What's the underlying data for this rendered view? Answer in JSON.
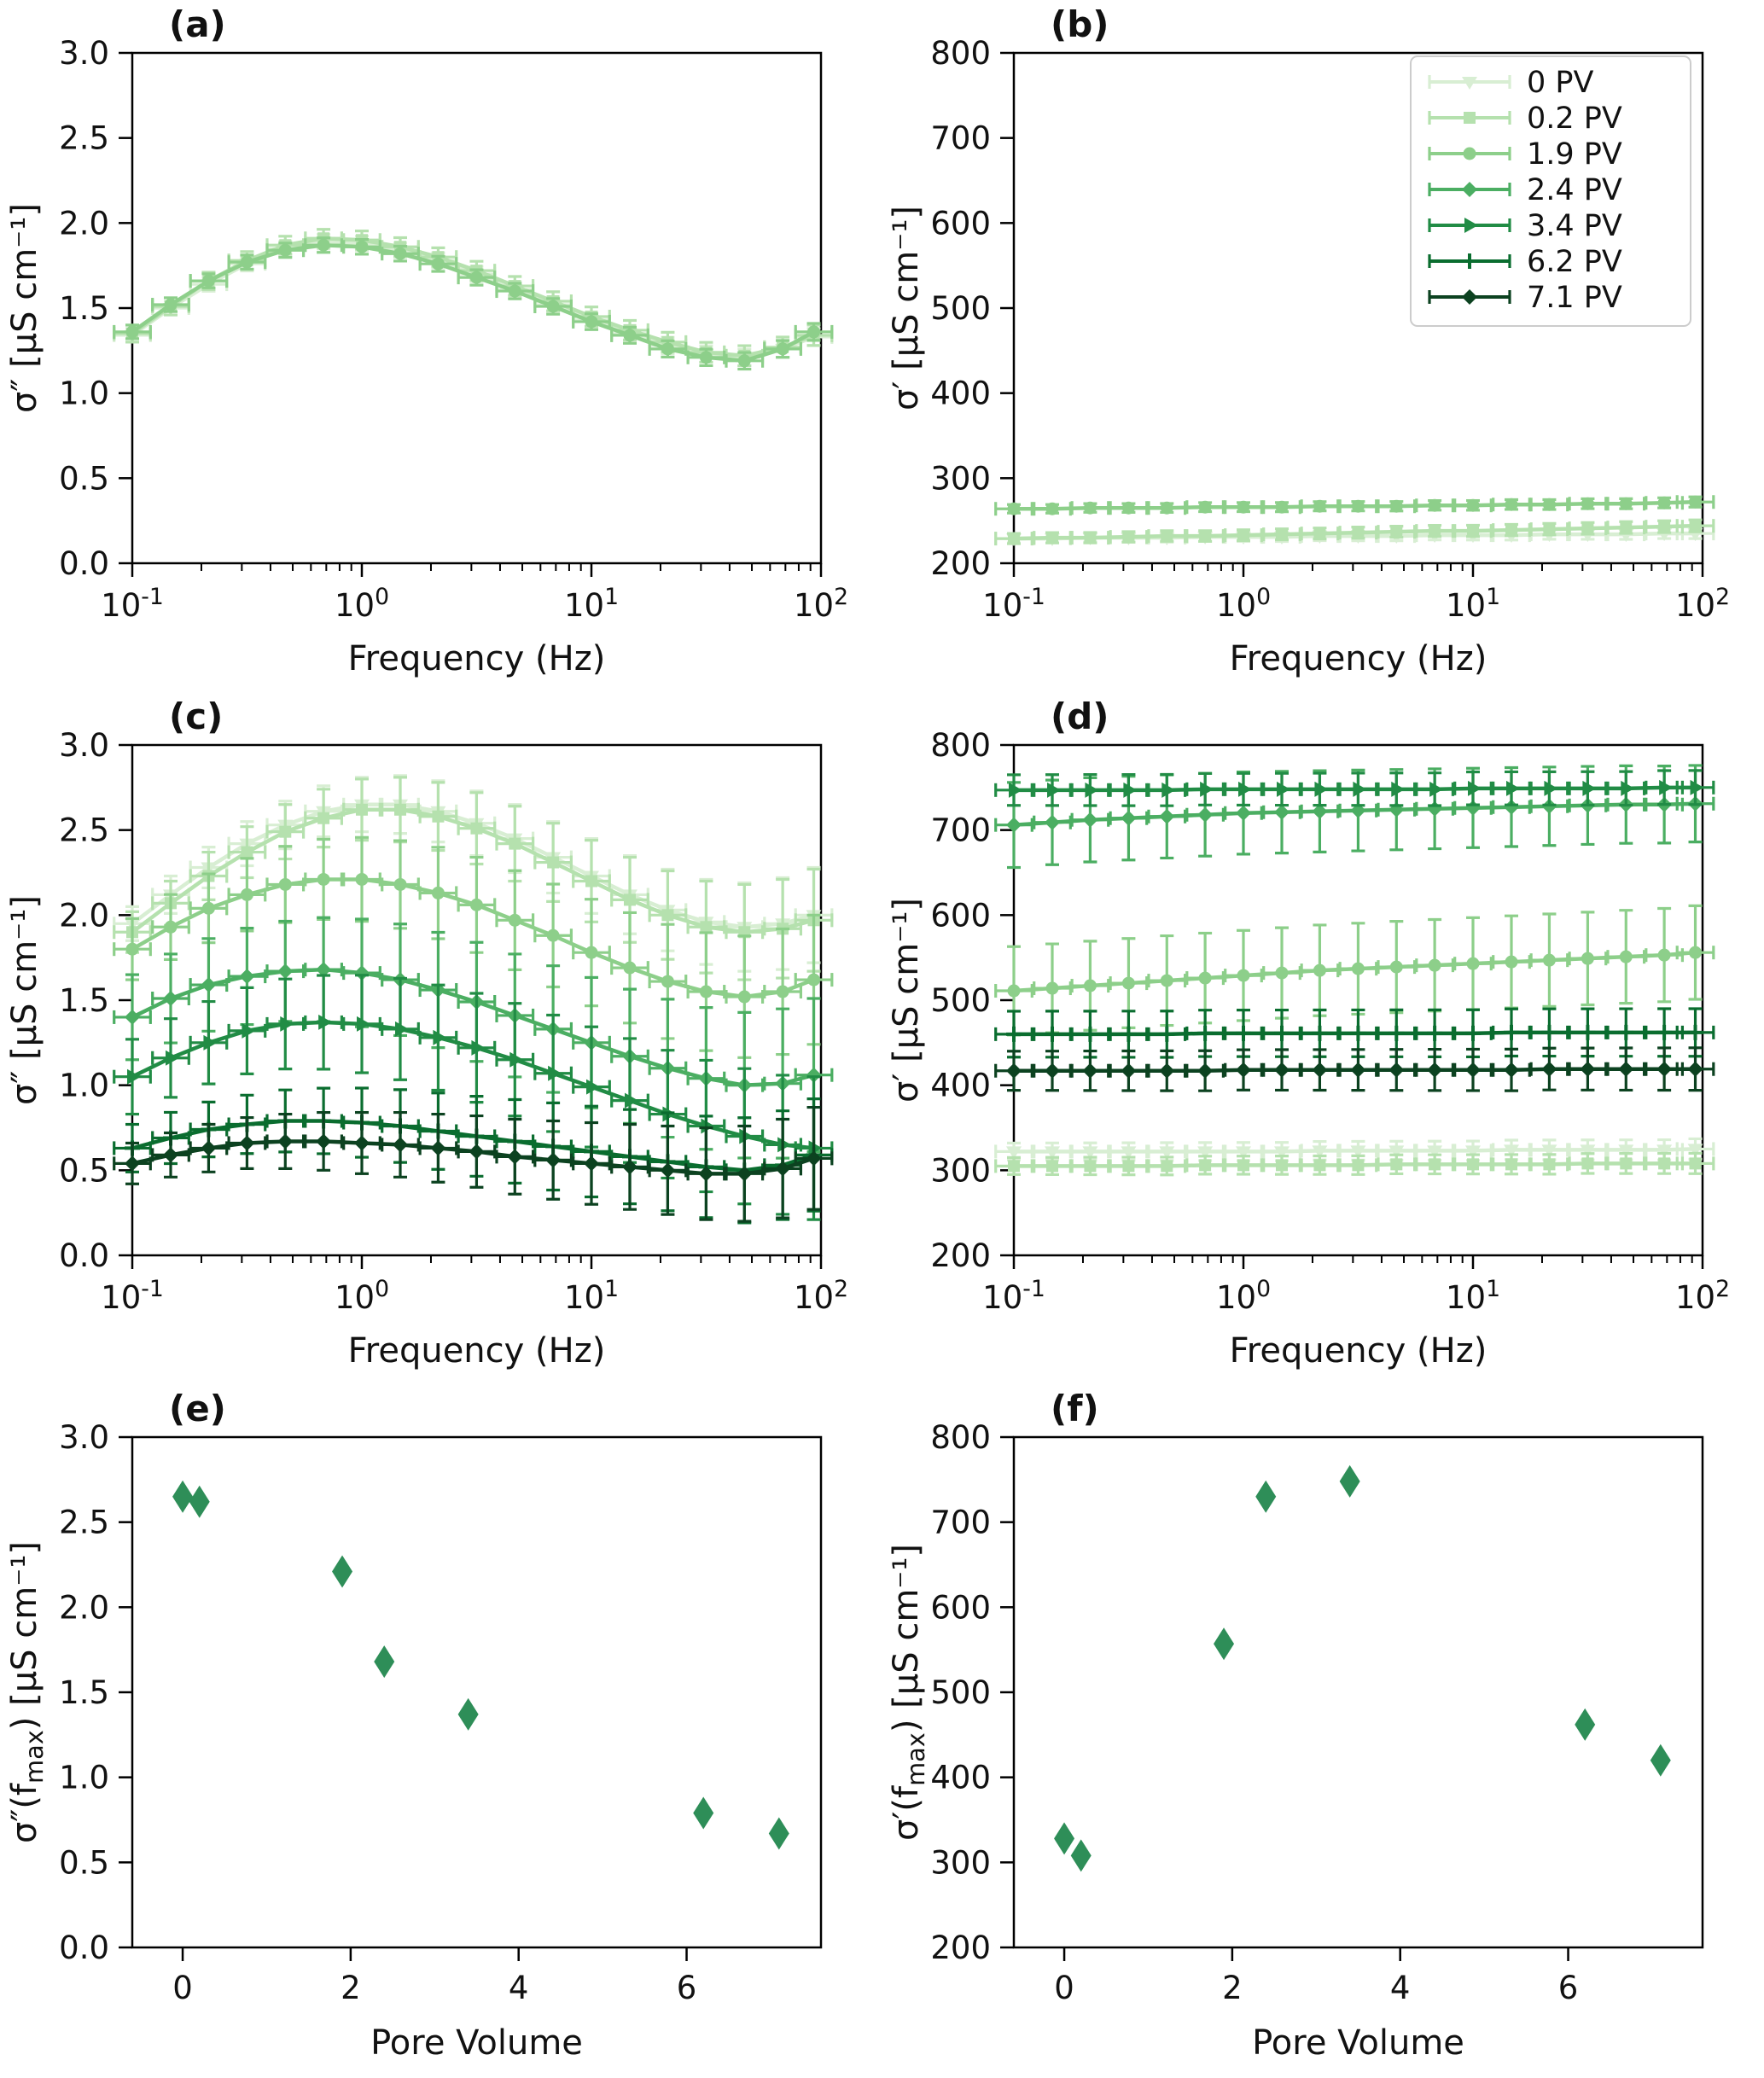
{
  "legend_labels": [
    "0 PV",
    "0.2 PV",
    "1.9 PV",
    "2.4 PV",
    "3.4 PV",
    "6.2 PV",
    "7.1 PV"
  ],
  "colors": {
    "pv0": "#d8eed3",
    "pv02": "#b5e1ae",
    "pv19": "#8dcf8a",
    "pv24": "#4bae62",
    "pv34": "#218c45",
    "pv62": "#0a6d2f",
    "pv71": "#0c4220",
    "scatter": "#2e8e58"
  },
  "chart_data": [
    {
      "panel_label": "(a)",
      "type": "line",
      "xscale": "log",
      "xlabel": "Frequency (Hz)",
      "ylabel": "σ″ [μS cm⁻¹]",
      "xlim_log": [
        -1,
        2
      ],
      "ylim": [
        0,
        3
      ],
      "yticks": [
        0.0,
        0.5,
        1.0,
        1.5,
        2.0,
        2.5,
        3.0
      ],
      "ytick_labels": [
        "0.0",
        "0.5",
        "1.0",
        "1.5",
        "2.0",
        "2.5",
        "3.0"
      ],
      "xticks_log": [
        -1,
        0,
        1,
        2
      ],
      "xtick_labels": [
        "10^{-1}",
        "10^{0}",
        "10^{1}",
        "10^{2}"
      ],
      "xerr_ratio": 1.2,
      "x": [
        0.1,
        0.147,
        0.215,
        0.316,
        0.464,
        0.681,
        1.0,
        1.47,
        2.15,
        3.16,
        4.64,
        6.81,
        10.0,
        14.7,
        21.5,
        31.6,
        46.4,
        68.1,
        93.0
      ],
      "series": [
        {
          "name": "0 PV",
          "color": "#d8eed3",
          "marker": "tri_down",
          "values": [
            1.34,
            1.5,
            1.64,
            1.76,
            1.85,
            1.89,
            1.88,
            1.84,
            1.78,
            1.7,
            1.61,
            1.52,
            1.43,
            1.35,
            1.28,
            1.23,
            1.21,
            1.26,
            1.33
          ],
          "yerr": [
            0.04,
            0.05
          ]
        },
        {
          "name": "0.2 PV",
          "color": "#b5e1ae",
          "marker": "square",
          "values": [
            1.35,
            1.51,
            1.66,
            1.78,
            1.87,
            1.91,
            1.9,
            1.86,
            1.8,
            1.72,
            1.63,
            1.54,
            1.45,
            1.37,
            1.3,
            1.24,
            1.22,
            1.27,
            1.34
          ],
          "yerr": [
            0.05,
            0.06
          ]
        },
        {
          "name": "1.9 PV",
          "color": "#8dcf8a",
          "marker": "circle",
          "values": [
            1.36,
            1.52,
            1.66,
            1.77,
            1.84,
            1.87,
            1.86,
            1.82,
            1.76,
            1.68,
            1.6,
            1.51,
            1.42,
            1.34,
            1.26,
            1.21,
            1.19,
            1.26,
            1.36
          ],
          "yerr": [
            0.04,
            0.05
          ]
        }
      ]
    },
    {
      "panel_label": "(b)",
      "type": "line",
      "xscale": "log",
      "xlabel": "Frequency (Hz)",
      "ylabel": "σ′ [μS cm⁻¹]",
      "xlim_log": [
        -1,
        2
      ],
      "ylim": [
        200,
        800
      ],
      "yticks": [
        200,
        300,
        400,
        500,
        600,
        700,
        800
      ],
      "ytick_labels": [
        "200",
        "300",
        "400",
        "500",
        "600",
        "700",
        "800"
      ],
      "xticks_log": [
        -1,
        0,
        1,
        2
      ],
      "xtick_labels": [
        "10^{-1}",
        "10^{0}",
        "10^{1}",
        "10^{2}"
      ],
      "xerr_ratio": 1.2,
      "x": [
        0.1,
        0.147,
        0.215,
        0.316,
        0.464,
        0.681,
        1.0,
        1.47,
        2.15,
        3.16,
        4.64,
        6.81,
        10.0,
        14.7,
        21.5,
        31.6,
        46.4,
        68.1,
        93.0
      ],
      "series": [
        {
          "name": "0 PV",
          "color": "#d8eed3",
          "marker": "tri_down",
          "values": [
            229,
            229,
            230,
            230,
            230,
            231,
            231,
            231,
            232,
            232,
            232,
            233,
            233,
            233,
            234,
            234,
            234,
            235,
            235
          ],
          "yerr": [
            5,
            6
          ]
        },
        {
          "name": "0.2 PV",
          "color": "#b5e1ae",
          "marker": "square",
          "values": [
            229,
            230,
            230,
            231,
            232,
            232,
            233,
            234,
            235,
            236,
            237,
            238,
            238,
            239,
            240,
            241,
            242,
            243,
            244
          ],
          "yerr": [
            6,
            7
          ]
        },
        {
          "name": "1.9 PV",
          "color": "#8dcf8a",
          "marker": "circle",
          "values": [
            264,
            264,
            265,
            265,
            265,
            266,
            266,
            266,
            267,
            267,
            267,
            268,
            268,
            269,
            269,
            270,
            270,
            271,
            272
          ],
          "yerr": [
            5,
            6
          ]
        }
      ],
      "legend": {
        "position": "upper right",
        "entries": [
          {
            "label": "0 PV",
            "color": "#d8eed3",
            "marker": "tri_down"
          },
          {
            "label": "0.2 PV",
            "color": "#b5e1ae",
            "marker": "square"
          },
          {
            "label": "1.9 PV",
            "color": "#8dcf8a",
            "marker": "circle"
          },
          {
            "label": "2.4 PV",
            "color": "#4bae62",
            "marker": "diamond"
          },
          {
            "label": "3.4 PV",
            "color": "#218c45",
            "marker": "tri_right"
          },
          {
            "label": "6.2 PV",
            "color": "#0a6d2f",
            "marker": "plus"
          },
          {
            "label": "7.1 PV",
            "color": "#0c4220",
            "marker": "diamond"
          }
        ]
      }
    },
    {
      "panel_label": "(c)",
      "type": "line",
      "xscale": "log",
      "xlabel": "Frequency (Hz)",
      "ylabel": "σ″ [μS cm⁻¹]",
      "xlim_log": [
        -1,
        2
      ],
      "ylim": [
        0,
        3
      ],
      "yticks": [
        0.0,
        0.5,
        1.0,
        1.5,
        2.0,
        2.5,
        3.0
      ],
      "ytick_labels": [
        "0.0",
        "0.5",
        "1.0",
        "1.5",
        "2.0",
        "2.5",
        "3.0"
      ],
      "xticks_log": [
        -1,
        0,
        1,
        2
      ],
      "xtick_labels": [
        "10^{-1}",
        "10^{0}",
        "10^{1}",
        "10^{2}"
      ],
      "xerr_ratio": 1.2,
      "x": [
        0.1,
        0.147,
        0.215,
        0.316,
        0.464,
        0.681,
        1.0,
        1.47,
        2.15,
        3.16,
        4.64,
        6.81,
        10.0,
        14.7,
        21.5,
        31.6,
        46.4,
        68.1,
        93.0
      ],
      "series": [
        {
          "name": "0 PV",
          "color": "#d8eed3",
          "marker": "tri_down",
          "values": [
            1.95,
            2.12,
            2.28,
            2.42,
            2.53,
            2.61,
            2.65,
            2.65,
            2.61,
            2.54,
            2.45,
            2.34,
            2.23,
            2.12,
            2.03,
            1.96,
            1.93,
            1.95,
            2.0
          ],
          "yerr": [
            0.1,
            0.28
          ]
        },
        {
          "name": "0.2 PV",
          "color": "#b5e1ae",
          "marker": "square",
          "values": [
            1.9,
            2.07,
            2.23,
            2.37,
            2.49,
            2.57,
            2.62,
            2.62,
            2.58,
            2.51,
            2.42,
            2.31,
            2.2,
            2.09,
            2.0,
            1.93,
            1.9,
            1.92,
            1.97
          ],
          "yerr": [
            0.12,
            0.3
          ]
        },
        {
          "name": "1.9 PV",
          "color": "#8dcf8a",
          "marker": "circle",
          "values": [
            1.8,
            1.93,
            2.04,
            2.12,
            2.18,
            2.21,
            2.21,
            2.18,
            2.13,
            2.06,
            1.97,
            1.88,
            1.78,
            1.69,
            1.61,
            1.55,
            1.52,
            1.55,
            1.62
          ],
          "yerr": [
            0.18,
            0.38
          ]
        },
        {
          "name": "2.4 PV",
          "color": "#4bae62",
          "marker": "diamond",
          "values": [
            1.4,
            1.51,
            1.59,
            1.64,
            1.67,
            1.68,
            1.66,
            1.62,
            1.56,
            1.49,
            1.41,
            1.33,
            1.25,
            1.17,
            1.1,
            1.04,
            1.0,
            1.01,
            1.06
          ],
          "yerr": [
            0.25,
            0.45
          ]
        },
        {
          "name": "3.4 PV",
          "color": "#218c45",
          "marker": "tri_right",
          "values": [
            1.05,
            1.16,
            1.25,
            1.32,
            1.36,
            1.37,
            1.36,
            1.33,
            1.28,
            1.22,
            1.15,
            1.07,
            0.99,
            0.91,
            0.83,
            0.76,
            0.7,
            0.65,
            0.63
          ],
          "yerr": [
            0.22,
            0.42
          ]
        },
        {
          "name": "6.2 PV",
          "color": "#0a6d2f",
          "marker": "plus",
          "values": [
            0.63,
            0.69,
            0.74,
            0.77,
            0.79,
            0.79,
            0.78,
            0.76,
            0.73,
            0.7,
            0.67,
            0.64,
            0.61,
            0.58,
            0.55,
            0.52,
            0.5,
            0.53,
            0.59
          ],
          "yerr": [
            0.14,
            0.33
          ]
        },
        {
          "name": "7.1 PV",
          "color": "#0c4220",
          "marker": "diamond",
          "values": [
            0.54,
            0.59,
            0.63,
            0.66,
            0.67,
            0.67,
            0.66,
            0.65,
            0.63,
            0.61,
            0.58,
            0.56,
            0.54,
            0.52,
            0.5,
            0.48,
            0.48,
            0.51,
            0.57
          ],
          "yerr": [
            0.12,
            0.3
          ]
        }
      ]
    },
    {
      "panel_label": "(d)",
      "type": "line",
      "xscale": "log",
      "xlabel": "Frequency (Hz)",
      "ylabel": "σ′ [μS cm⁻¹]",
      "xlim_log": [
        -1,
        2
      ],
      "ylim": [
        200,
        800
      ],
      "yticks": [
        200,
        300,
        400,
        500,
        600,
        700,
        800
      ],
      "ytick_labels": [
        "200",
        "300",
        "400",
        "500",
        "600",
        "700",
        "800"
      ],
      "xticks_log": [
        -1,
        0,
        1,
        2
      ],
      "xtick_labels": [
        "10^{-1}",
        "10^{0}",
        "10^{1}",
        "10^{2}"
      ],
      "xerr_ratio": 1.2,
      "x": [
        0.1,
        0.147,
        0.215,
        0.316,
        0.464,
        0.681,
        1.0,
        1.47,
        2.15,
        3.16,
        4.64,
        6.81,
        10.0,
        14.7,
        21.5,
        31.6,
        46.4,
        68.1,
        93.0
      ],
      "series": [
        {
          "name": "0 PV",
          "color": "#d8eed3",
          "marker": "tri_down",
          "values": [
            322,
            322,
            322,
            322,
            322,
            322,
            322,
            322,
            323,
            323,
            323,
            323,
            323,
            324,
            324,
            324,
            324,
            324,
            325
          ],
          "yerr": [
            10,
            12
          ]
        },
        {
          "name": "0.2 PV",
          "color": "#b5e1ae",
          "marker": "square",
          "values": [
            305,
            305,
            305,
            305,
            305,
            306,
            306,
            306,
            306,
            306,
            307,
            307,
            307,
            307,
            307,
            308,
            308,
            308,
            308
          ],
          "yerr": [
            10,
            12
          ]
        },
        {
          "name": "1.9 PV",
          "color": "#8dcf8a",
          "marker": "circle",
          "values": [
            511,
            514,
            517,
            520,
            523,
            526,
            529,
            532,
            535,
            537,
            539,
            541,
            543,
            545,
            547,
            549,
            551,
            553,
            556
          ],
          "yerr": [
            52,
            55
          ]
        },
        {
          "name": "2.4 PV",
          "color": "#4bae62",
          "marker": "diamond",
          "values": [
            706,
            709,
            712,
            714,
            716,
            718,
            720,
            721,
            722,
            723,
            724,
            725,
            726,
            727,
            728,
            729,
            730,
            730,
            731
          ],
          "yerr": [
            50,
            45
          ]
        },
        {
          "name": "3.4 PV",
          "color": "#218c45",
          "marker": "tri_right",
          "values": [
            747,
            747,
            747,
            747,
            747,
            748,
            748,
            748,
            748,
            748,
            748,
            748,
            749,
            749,
            749,
            749,
            749,
            750,
            750
          ],
          "yerr": [
            18,
            20
          ]
        },
        {
          "name": "6.2 PV",
          "color": "#0a6d2f",
          "marker": "plus",
          "values": [
            460,
            460,
            460,
            460,
            460,
            461,
            461,
            461,
            461,
            461,
            461,
            461,
            461,
            462,
            462,
            462,
            462,
            462,
            462
          ],
          "yerr": [
            27,
            28
          ]
        },
        {
          "name": "7.1 PV",
          "color": "#0c4220",
          "marker": "diamond",
          "values": [
            417,
            417,
            417,
            417,
            417,
            417,
            418,
            418,
            418,
            418,
            418,
            418,
            418,
            418,
            419,
            419,
            419,
            419,
            419
          ],
          "yerr": [
            23,
            25
          ]
        }
      ]
    },
    {
      "panel_label": "(e)",
      "type": "scatter",
      "xscale": "linear",
      "xlabel": "Pore Volume",
      "ylabel": "σ″(f_{max}) [μS cm⁻¹]",
      "xlim": [
        -0.6,
        7.6
      ],
      "ylim": [
        0,
        3
      ],
      "yticks": [
        0.0,
        0.5,
        1.0,
        1.5,
        2.0,
        2.5,
        3.0
      ],
      "ytick_labels": [
        "0.0",
        "0.5",
        "1.0",
        "1.5",
        "2.0",
        "2.5",
        "3.0"
      ],
      "xticks": [
        0,
        2,
        4,
        6
      ],
      "xtick_labels": [
        "0",
        "2",
        "4",
        "6"
      ],
      "marker": "thin_diamond",
      "marker_color": "#2e8e58",
      "x": [
        0,
        0.2,
        1.9,
        2.4,
        3.4,
        6.2,
        7.1
      ],
      "values": [
        2.65,
        2.62,
        2.21,
        1.68,
        1.37,
        0.79,
        0.67
      ]
    },
    {
      "panel_label": "(f)",
      "type": "scatter",
      "xscale": "linear",
      "xlabel": "Pore Volume",
      "ylabel": "σ′(f_{max}) [μS cm⁻¹]",
      "xlim": [
        -0.6,
        7.6
      ],
      "ylim": [
        200,
        800
      ],
      "yticks": [
        200,
        300,
        400,
        500,
        600,
        700,
        800
      ],
      "ytick_labels": [
        "200",
        "300",
        "400",
        "500",
        "600",
        "700",
        "800"
      ],
      "xticks": [
        0,
        2,
        4,
        6
      ],
      "xtick_labels": [
        "0",
        "2",
        "4",
        "6"
      ],
      "marker": "thin_diamond",
      "marker_color": "#2e8e58",
      "x": [
        0,
        0.2,
        1.9,
        2.4,
        3.4,
        6.2,
        7.1
      ],
      "values": [
        328,
        308,
        557,
        730,
        748,
        462,
        420
      ]
    }
  ]
}
